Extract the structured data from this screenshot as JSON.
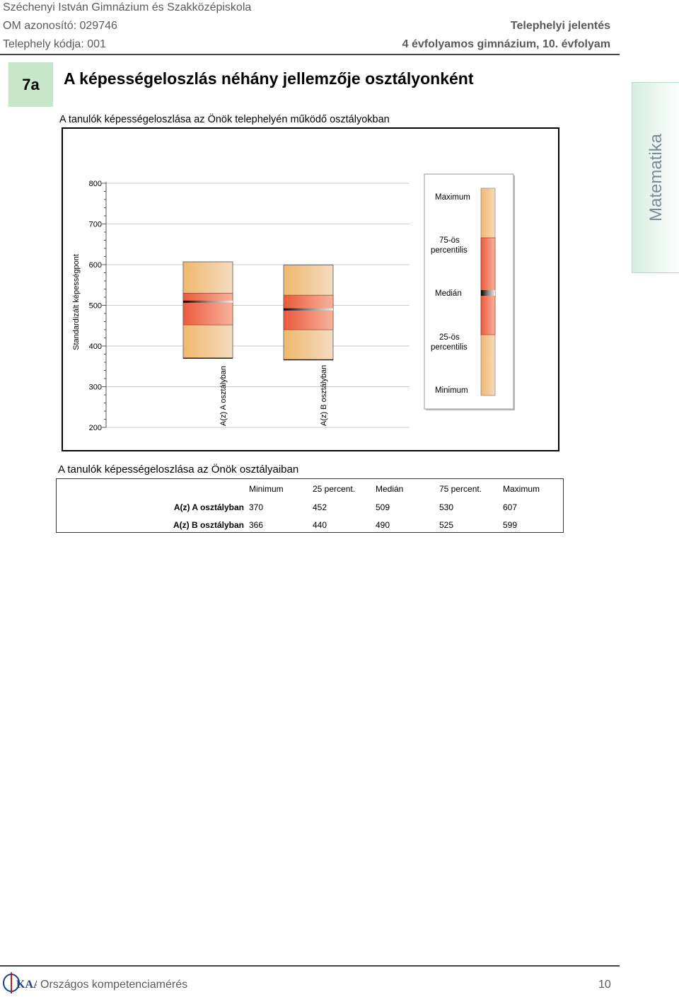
{
  "header": {
    "school": "Széchenyi István Gimnázium és Szakközépiskola",
    "om_id": "OM azonosító: 029746",
    "site_code": "Telephely kódja: 001",
    "report_type": "Telephelyi jelentés",
    "program": "4 évfolyamos gimnázium, 10. évfolyam"
  },
  "section": {
    "number": "7a",
    "title": "A képességeloszlás néhány jellemzője osztályonként",
    "subject_tab": "Matematika"
  },
  "chart_caption": "A tanulók képességeloszlása az Önök telephelyén működő osztályokban",
  "chart_data": {
    "type": "boxplot",
    "ylabel": "Standardizált képességpont",
    "ylim": [
      200,
      800
    ],
    "yticks": [
      200,
      300,
      400,
      500,
      600,
      700,
      800
    ],
    "grid": true,
    "categories": [
      "A(z) A osztályban",
      "A(z) B osztályban"
    ],
    "series": [
      {
        "name": "A(z) A osztályban",
        "min": 370,
        "q1": 452,
        "median": 509,
        "q3": 530,
        "max": 607
      },
      {
        "name": "A(z) B osztályban",
        "min": 366,
        "q1": 440,
        "median": 490,
        "q3": 525,
        "max": 599
      }
    ],
    "legend": {
      "position": "right",
      "items": [
        "Maximum",
        "75-ös percentilis",
        "Medián",
        "25-ös percentilis",
        "Minimum"
      ]
    },
    "colors": {
      "outer": "#f3c98a",
      "inner": "#ee6a4c",
      "median": "#111111"
    }
  },
  "table": {
    "caption": "A tanulók képességeloszlása az Önök osztályaiban",
    "columns": [
      "Minimum",
      "25 percent.",
      "Medián",
      "75 percent.",
      "Maximum"
    ],
    "rows": [
      {
        "label": "A(z) A osztályban",
        "values": [
          "370",
          "452",
          "509",
          "530",
          "607"
        ]
      },
      {
        "label": "A(z) B osztályban",
        "values": [
          "366",
          "440",
          "490",
          "525",
          "599"
        ]
      }
    ]
  },
  "footer": {
    "logo": "OH-KAA",
    "text": "Országos kompetenciamérés",
    "page": "10"
  }
}
